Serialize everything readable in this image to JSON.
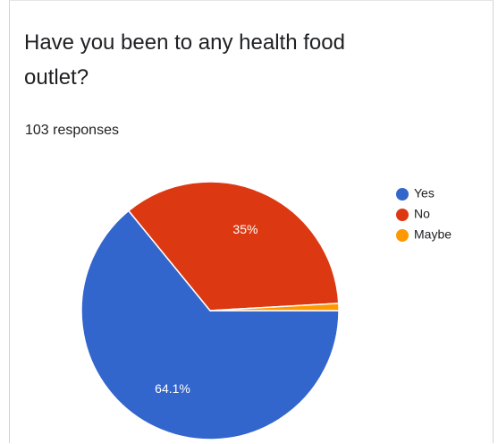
{
  "question": {
    "title": "Have you been to any health food outlet?",
    "responses_text": "103 responses"
  },
  "chart_data": {
    "type": "pie",
    "categories": [
      "Yes",
      "No",
      "Maybe"
    ],
    "values": [
      64.1,
      35,
      0.9
    ],
    "data_labels": [
      "64.1%",
      "35%",
      ""
    ],
    "colors": [
      "#3366cc",
      "#dc3912",
      "#ff9900"
    ],
    "legend_position": "right",
    "start_direction": "right",
    "order": "counterclockwise-from-right"
  }
}
